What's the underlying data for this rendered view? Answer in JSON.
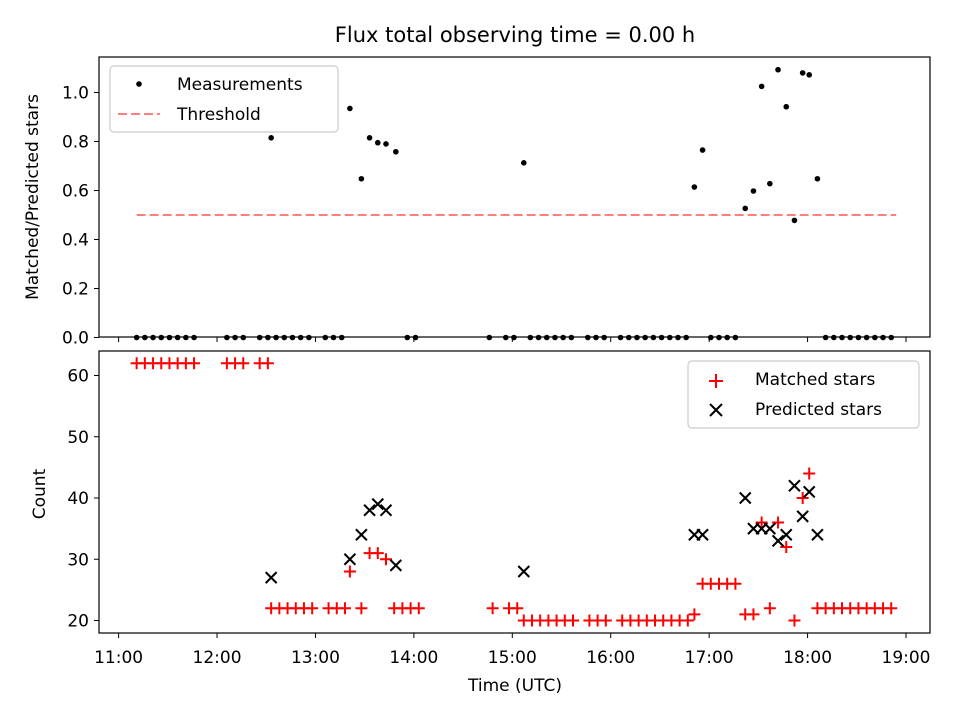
{
  "chart_data": [
    {
      "type": "scatter",
      "title": "Flux total observing time = 0.00 h",
      "xlabel": "",
      "ylabel": "Matched/Predicted stars",
      "xlim": [
        "11:00",
        "19:00"
      ],
      "ylim": [
        0.0,
        1.15
      ],
      "yticks": [
        0.0,
        0.2,
        0.4,
        0.6,
        0.8,
        1.0
      ],
      "ytick_labels": [
        "0.0",
        "0.2",
        "0.4",
        "0.6",
        "0.8",
        "1.0"
      ],
      "legend": "top-left",
      "series": [
        {
          "name": "Measurements",
          "marker": "dot",
          "color": "#000000",
          "points": [
            [
              "11:11",
              0
            ],
            [
              "11:16",
              0
            ],
            [
              "11:21",
              0
            ],
            [
              "11:26",
              0
            ],
            [
              "11:31",
              0
            ],
            [
              "11:36",
              0
            ],
            [
              "11:41",
              0
            ],
            [
              "11:46",
              0
            ],
            [
              "12:06",
              0
            ],
            [
              "12:11",
              0
            ],
            [
              "12:16",
              0
            ],
            [
              "12:26",
              0
            ],
            [
              "12:31",
              0
            ],
            [
              "12:33",
              0.815
            ],
            [
              "12:36",
              0
            ],
            [
              "12:41",
              0
            ],
            [
              "12:46",
              0
            ],
            [
              "12:51",
              0
            ],
            [
              "12:56",
              0
            ],
            [
              "13:06",
              0
            ],
            [
              "13:11",
              0
            ],
            [
              "13:16",
              0
            ],
            [
              "13:21",
              0.935
            ],
            [
              "13:28",
              0.648
            ],
            [
              "13:33",
              0.815
            ],
            [
              "13:38",
              0.795
            ],
            [
              "13:43",
              0.79
            ],
            [
              "13:49",
              0.758
            ],
            [
              "13:56",
              0
            ],
            [
              "14:01",
              0
            ],
            [
              "14:46",
              0
            ],
            [
              "14:56",
              0
            ],
            [
              "15:01",
              0
            ],
            [
              "15:07",
              0.713
            ],
            [
              "15:11",
              0
            ],
            [
              "15:16",
              0
            ],
            [
              "15:21",
              0
            ],
            [
              "15:26",
              0
            ],
            [
              "15:31",
              0
            ],
            [
              "15:36",
              0
            ],
            [
              "15:46",
              0
            ],
            [
              "15:51",
              0
            ],
            [
              "15:56",
              0
            ],
            [
              "16:06",
              0
            ],
            [
              "16:11",
              0
            ],
            [
              "16:16",
              0
            ],
            [
              "16:21",
              0
            ],
            [
              "16:26",
              0
            ],
            [
              "16:31",
              0
            ],
            [
              "16:36",
              0
            ],
            [
              "16:41",
              0
            ],
            [
              "16:46",
              0
            ],
            [
              "16:51",
              0.614
            ],
            [
              "16:56",
              0.765
            ],
            [
              "17:01",
              0
            ],
            [
              "17:06",
              0
            ],
            [
              "17:11",
              0
            ],
            [
              "17:16",
              0
            ],
            [
              "17:22",
              0.527
            ],
            [
              "17:27",
              0.598
            ],
            [
              "17:32",
              1.025
            ],
            [
              "17:37",
              0.628
            ],
            [
              "17:42",
              1.093
            ],
            [
              "17:47",
              0.942
            ],
            [
              "17:52",
              0.478
            ],
            [
              "17:57",
              1.08
            ],
            [
              "18:01",
              1.072
            ],
            [
              "18:06",
              0.648
            ],
            [
              "18:11",
              0
            ],
            [
              "18:16",
              0
            ],
            [
              "18:21",
              0
            ],
            [
              "18:26",
              0
            ],
            [
              "18:31",
              0
            ],
            [
              "18:36",
              0
            ],
            [
              "18:41",
              0
            ],
            [
              "18:46",
              0
            ],
            [
              "18:51",
              0
            ]
          ]
        },
        {
          "name": "Threshold",
          "line": "dashed",
          "color": "#ff7f7f",
          "points": [
            [
              "11:11",
              0.5
            ],
            [
              "18:54",
              0.5
            ]
          ]
        }
      ]
    },
    {
      "type": "scatter",
      "title": "",
      "xlabel": "Time (UTC)",
      "ylabel": "Count",
      "xlim": [
        "11:00",
        "19:00"
      ],
      "xticks": [
        "11:00",
        "12:00",
        "13:00",
        "14:00",
        "15:00",
        "16:00",
        "17:00",
        "18:00",
        "19:00"
      ],
      "ylim": [
        18,
        64
      ],
      "yticks": [
        20,
        30,
        40,
        50,
        60
      ],
      "legend": "top-right",
      "series": [
        {
          "name": "Matched stars",
          "marker": "plus",
          "color": "#ff0000",
          "points": [
            [
              "11:11",
              62
            ],
            [
              "11:16",
              62
            ],
            [
              "11:21",
              62
            ],
            [
              "11:26",
              62
            ],
            [
              "11:31",
              62
            ],
            [
              "11:36",
              62
            ],
            [
              "11:41",
              62
            ],
            [
              "11:46",
              62
            ],
            [
              "12:06",
              62
            ],
            [
              "12:11",
              62
            ],
            [
              "12:16",
              62
            ],
            [
              "12:26",
              62
            ],
            [
              "12:31",
              62
            ],
            [
              "12:33",
              22
            ],
            [
              "12:38",
              22
            ],
            [
              "12:43",
              22
            ],
            [
              "12:48",
              22
            ],
            [
              "12:53",
              22
            ],
            [
              "12:58",
              22
            ],
            [
              "13:08",
              22
            ],
            [
              "13:13",
              22
            ],
            [
              "13:18",
              22
            ],
            [
              "13:21",
              28
            ],
            [
              "13:28",
              22
            ],
            [
              "13:33",
              31
            ],
            [
              "13:38",
              31
            ],
            [
              "13:43",
              30
            ],
            [
              "13:48",
              22
            ],
            [
              "13:53",
              22
            ],
            [
              "13:58",
              22
            ],
            [
              "14:03",
              22
            ],
            [
              "14:48",
              22
            ],
            [
              "14:58",
              22
            ],
            [
              "15:03",
              22
            ],
            [
              "15:07",
              20
            ],
            [
              "15:12",
              20
            ],
            [
              "15:17",
              20
            ],
            [
              "15:22",
              20
            ],
            [
              "15:27",
              20
            ],
            [
              "15:32",
              20
            ],
            [
              "15:37",
              20
            ],
            [
              "15:47",
              20
            ],
            [
              "15:52",
              20
            ],
            [
              "15:57",
              20
            ],
            [
              "16:07",
              20
            ],
            [
              "16:12",
              20
            ],
            [
              "16:17",
              20
            ],
            [
              "16:22",
              20
            ],
            [
              "16:27",
              20
            ],
            [
              "16:32",
              20
            ],
            [
              "16:37",
              20
            ],
            [
              "16:42",
              20
            ],
            [
              "16:47",
              20
            ],
            [
              "16:51",
              21
            ],
            [
              "16:56",
              26
            ],
            [
              "17:01",
              26
            ],
            [
              "17:06",
              26
            ],
            [
              "17:11",
              26
            ],
            [
              "17:16",
              26
            ],
            [
              "17:22",
              21
            ],
            [
              "17:27",
              21
            ],
            [
              "17:32",
              36
            ],
            [
              "17:37",
              22
            ],
            [
              "17:42",
              36
            ],
            [
              "17:47",
              32
            ],
            [
              "17:52",
              20
            ],
            [
              "17:57",
              40
            ],
            [
              "18:01",
              44
            ],
            [
              "18:06",
              22
            ],
            [
              "18:11",
              22
            ],
            [
              "18:16",
              22
            ],
            [
              "18:21",
              22
            ],
            [
              "18:26",
              22
            ],
            [
              "18:31",
              22
            ],
            [
              "18:36",
              22
            ],
            [
              "18:41",
              22
            ],
            [
              "18:46",
              22
            ],
            [
              "18:51",
              22
            ]
          ]
        },
        {
          "name": "Predicted stars",
          "marker": "x",
          "color": "#000000",
          "points": [
            [
              "12:33",
              27
            ],
            [
              "13:21",
              30
            ],
            [
              "13:28",
              34
            ],
            [
              "13:33",
              38
            ],
            [
              "13:38",
              39
            ],
            [
              "13:43",
              38
            ],
            [
              "13:49",
              29
            ],
            [
              "15:07",
              28
            ],
            [
              "16:51",
              34
            ],
            [
              "16:56",
              34
            ],
            [
              "17:22",
              40
            ],
            [
              "17:27",
              35
            ],
            [
              "17:32",
              35
            ],
            [
              "17:37",
              35
            ],
            [
              "17:42",
              33
            ],
            [
              "17:47",
              34
            ],
            [
              "17:52",
              42
            ],
            [
              "17:57",
              37
            ],
            [
              "18:01",
              41
            ],
            [
              "18:06",
              34
            ]
          ]
        }
      ]
    }
  ]
}
